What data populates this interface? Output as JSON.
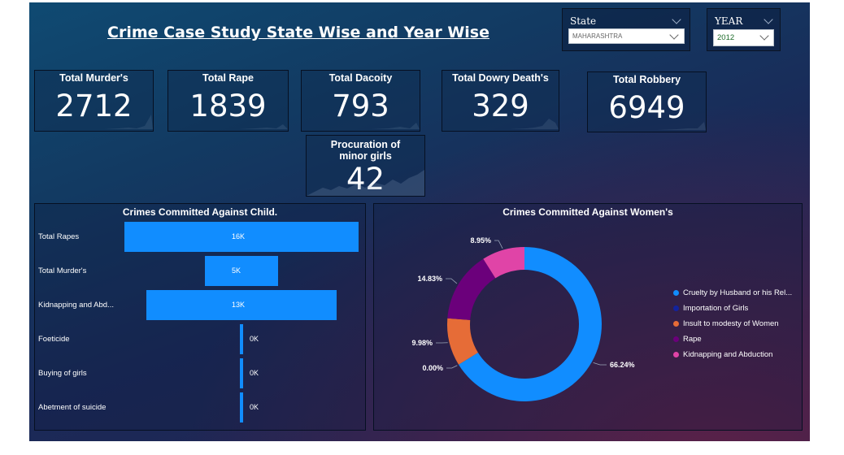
{
  "title": "Crime Case Study State Wise and Year Wise",
  "state_slicer": {
    "label": "State",
    "selected": "MAHARASHTRA"
  },
  "year_slicer": {
    "label": "YEAR",
    "selected": "2012"
  },
  "kpis": [
    {
      "title": "Total Murder's",
      "value": "2712"
    },
    {
      "title": "Total Rape",
      "value": "1839"
    },
    {
      "title": "Total Dacoity",
      "value": "793"
    },
    {
      "title": "Total Dowry Death's",
      "value": "329"
    },
    {
      "title": "Total Robbery",
      "value": "6949"
    },
    {
      "title": "Procuration of minor girls",
      "value": "42"
    }
  ],
  "chart_data": [
    {
      "type": "bar",
      "orientation": "horizontal-funnel",
      "title": "Crimes Committed Against Child.",
      "categories": [
        "Total Rapes",
        "Total Murder's",
        "Kidnapping and Abd...",
        "Foeticide",
        "Buying of girls",
        "Abetment of suicide"
      ],
      "values": [
        16000,
        5000,
        13000,
        10,
        10,
        10
      ],
      "labels": [
        "16K",
        "5K",
        "13K",
        "0K",
        "0K",
        "0K"
      ],
      "color": "#118dff"
    },
    {
      "type": "pie",
      "variant": "donut",
      "title": "Crimes Committed Against Women's",
      "categories": [
        "Cruelty by Husband or his Rel...",
        "Importation of Girls",
        "Insult to modesty of Women",
        "Rape",
        "Kidnapping and Abduction"
      ],
      "values": [
        66.24,
        0.0,
        9.98,
        14.83,
        8.95
      ],
      "labels": [
        "66.24%",
        "0.00%",
        "9.98%",
        "14.83%",
        "8.95%"
      ],
      "colors": [
        "#118dff",
        "#12239e",
        "#e66c37",
        "#6b007b",
        "#e044a7"
      ],
      "legend_position": "right"
    }
  ]
}
